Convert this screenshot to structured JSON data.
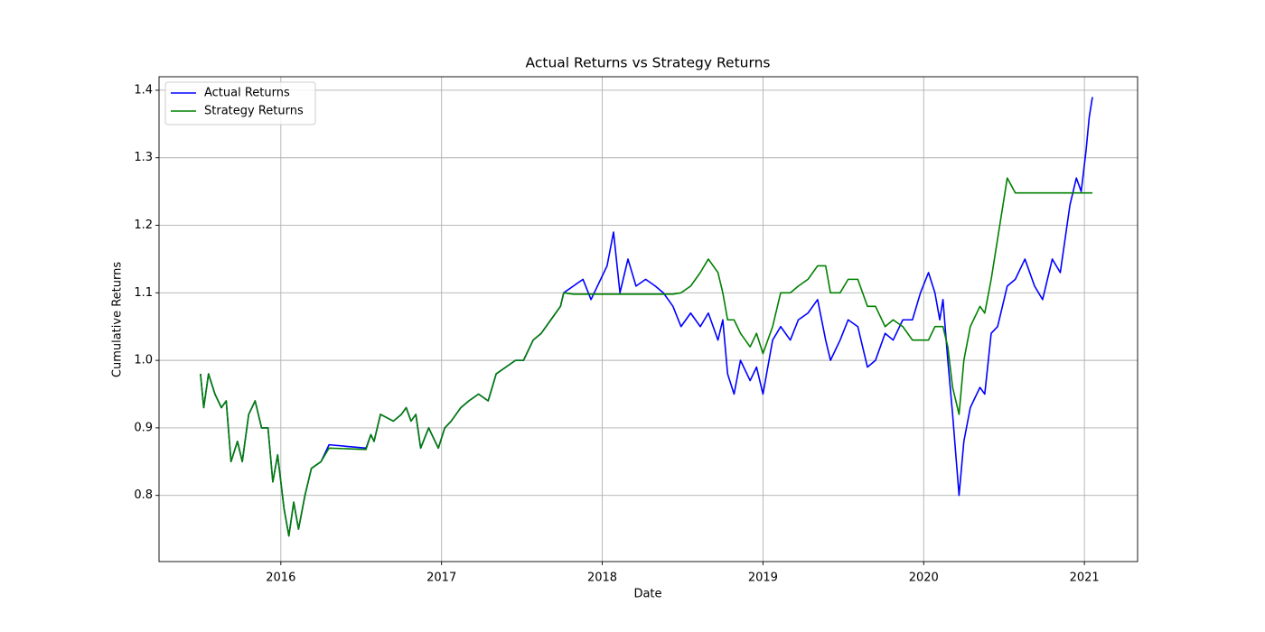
{
  "chart_data": {
    "type": "line",
    "title": "Actual Returns vs Strategy Returns",
    "xlabel": "Date",
    "ylabel": "Cumulative Returns",
    "x": [
      2015.5,
      2015.52,
      2015.55,
      2015.59,
      2015.63,
      2015.66,
      2015.69,
      2015.73,
      2015.76,
      2015.8,
      2015.84,
      2015.88,
      2015.92,
      2015.95,
      2015.98,
      2016.02,
      2016.05,
      2016.08,
      2016.11,
      2016.15,
      2016.19,
      2016.25,
      2016.3,
      2016.53,
      2016.56,
      2016.58,
      2016.62,
      2016.7,
      2016.75,
      2016.78,
      2016.81,
      2016.84,
      2016.87,
      2016.92,
      2016.98,
      2017.02,
      2017.06,
      2017.12,
      2017.17,
      2017.23,
      2017.29,
      2017.34,
      2017.4,
      2017.46,
      2017.51,
      2017.57,
      2017.62,
      2017.68,
      2017.74,
      2017.76,
      2017.82,
      2017.88,
      2017.93,
      2017.99,
      2018.03,
      2018.07,
      2018.11,
      2018.16,
      2018.21,
      2018.27,
      2018.33,
      2018.38,
      2018.44,
      2018.49,
      2018.55,
      2018.61,
      2018.66,
      2018.72,
      2018.75,
      2018.78,
      2018.82,
      2018.86,
      2018.92,
      2018.96,
      2019.0,
      2019.06,
      2019.11,
      2019.17,
      2019.22,
      2019.28,
      2019.34,
      2019.39,
      2019.42,
      2019.48,
      2019.53,
      2019.59,
      2019.65,
      2019.7,
      2019.76,
      2019.81,
      2019.87,
      2019.93,
      2019.98,
      2020.03,
      2020.07,
      2020.1,
      2020.12,
      2020.15,
      2020.18,
      2020.22,
      2020.25,
      2020.29,
      2020.35,
      2020.38,
      2020.42,
      2020.46,
      2020.52,
      2020.57,
      2020.63,
      2020.69,
      2020.74,
      2020.8,
      2020.85,
      2020.91,
      2020.95,
      2020.98,
      2021.01,
      2021.03,
      2021.05
    ],
    "series": [
      {
        "name": "Actual Returns",
        "color": "#0000ff",
        "values": [
          0.98,
          0.93,
          0.98,
          0.95,
          0.93,
          0.94,
          0.85,
          0.88,
          0.85,
          0.92,
          0.94,
          0.9,
          0.9,
          0.82,
          0.86,
          0.78,
          0.74,
          0.79,
          0.75,
          0.8,
          0.84,
          0.85,
          0.875,
          0.87,
          0.89,
          0.88,
          0.92,
          0.91,
          0.92,
          0.93,
          0.91,
          0.92,
          0.87,
          0.9,
          0.87,
          0.9,
          0.91,
          0.93,
          0.94,
          0.95,
          0.94,
          0.98,
          0.99,
          1.0,
          1.0,
          1.03,
          1.04,
          1.06,
          1.08,
          1.1,
          1.11,
          1.12,
          1.09,
          1.12,
          1.14,
          1.19,
          1.1,
          1.15,
          1.11,
          1.12,
          1.11,
          1.1,
          1.08,
          1.05,
          1.07,
          1.05,
          1.07,
          1.03,
          1.06,
          0.98,
          0.95,
          1.0,
          0.97,
          0.99,
          0.95,
          1.03,
          1.05,
          1.03,
          1.06,
          1.07,
          1.09,
          1.03,
          1.0,
          1.03,
          1.06,
          1.05,
          0.99,
          1.0,
          1.04,
          1.03,
          1.06,
          1.06,
          1.1,
          1.13,
          1.1,
          1.06,
          1.09,
          1.0,
          0.92,
          0.8,
          0.88,
          0.93,
          0.96,
          0.95,
          1.04,
          1.05,
          1.11,
          1.12,
          1.15,
          1.11,
          1.09,
          1.15,
          1.13,
          1.23,
          1.27,
          1.25,
          1.31,
          1.36,
          1.39
        ]
      },
      {
        "name": "Strategy Returns",
        "color": "#008000",
        "values": [
          0.98,
          0.93,
          0.98,
          0.95,
          0.93,
          0.94,
          0.85,
          0.88,
          0.85,
          0.92,
          0.94,
          0.9,
          0.9,
          0.82,
          0.86,
          0.78,
          0.74,
          0.79,
          0.75,
          0.8,
          0.84,
          0.85,
          0.87,
          0.868,
          0.89,
          0.88,
          0.92,
          0.91,
          0.92,
          0.93,
          0.91,
          0.92,
          0.87,
          0.9,
          0.87,
          0.9,
          0.91,
          0.93,
          0.94,
          0.95,
          0.94,
          0.98,
          0.99,
          1.0,
          1.0,
          1.03,
          1.04,
          1.06,
          1.08,
          1.1,
          1.098,
          1.098,
          1.098,
          1.098,
          1.098,
          1.098,
          1.098,
          1.098,
          1.098,
          1.098,
          1.098,
          1.098,
          1.098,
          1.1,
          1.11,
          1.13,
          1.15,
          1.13,
          1.1,
          1.06,
          1.06,
          1.04,
          1.02,
          1.04,
          1.01,
          1.05,
          1.1,
          1.1,
          1.11,
          1.12,
          1.14,
          1.14,
          1.1,
          1.1,
          1.12,
          1.12,
          1.08,
          1.08,
          1.05,
          1.06,
          1.05,
          1.03,
          1.03,
          1.03,
          1.05,
          1.05,
          1.05,
          1.02,
          0.96,
          0.92,
          1.0,
          1.05,
          1.08,
          1.07,
          1.12,
          1.18,
          1.27,
          1.248,
          1.248,
          1.248,
          1.248,
          1.248,
          1.248,
          1.248,
          1.248,
          1.248,
          1.248,
          1.248,
          1.248
        ]
      }
    ],
    "xlim": [
      2015.242,
      2021.331
    ],
    "xticks": [
      2016,
      2017,
      2018,
      2019,
      2020,
      2021
    ],
    "ylim": [
      0.702,
      1.42
    ],
    "yticks": [
      0.8,
      0.9,
      {
        "value": 1,
        "label": "1.0"
      },
      1.1,
      1.2,
      1.3,
      1.4
    ],
    "grid": true,
    "legend": "upper left"
  }
}
